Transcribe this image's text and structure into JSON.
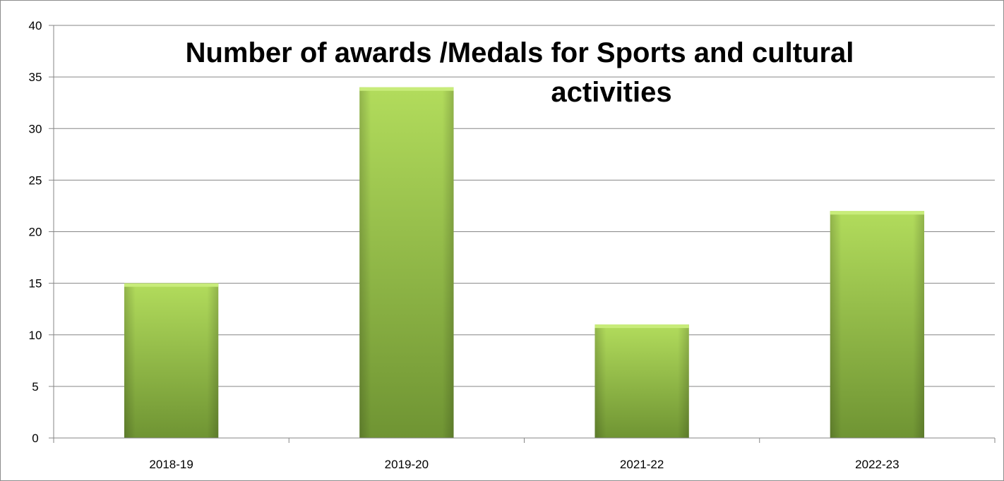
{
  "chart_data": {
    "type": "bar",
    "title_lines": [
      "Number of awards /Medals for Sports and cultural",
      "activities"
    ],
    "categories": [
      "2018-19",
      "2019-20",
      "2021-22",
      "2022-23"
    ],
    "values": [
      15,
      34,
      11,
      22
    ],
    "y_ticks": [
      "0",
      "5",
      "10",
      "15",
      "20",
      "25",
      "30",
      "35",
      "40"
    ],
    "ylim": [
      0,
      40
    ],
    "y_step": 5,
    "grid": true,
    "legend": false,
    "colors": {
      "bar_light": "#b2dc5c",
      "bar_mid": "#93c046",
      "bar_dark": "#6f9433",
      "bar_top": "#c8ec7a",
      "gridline": "#868686",
      "axis": "#868686"
    }
  }
}
